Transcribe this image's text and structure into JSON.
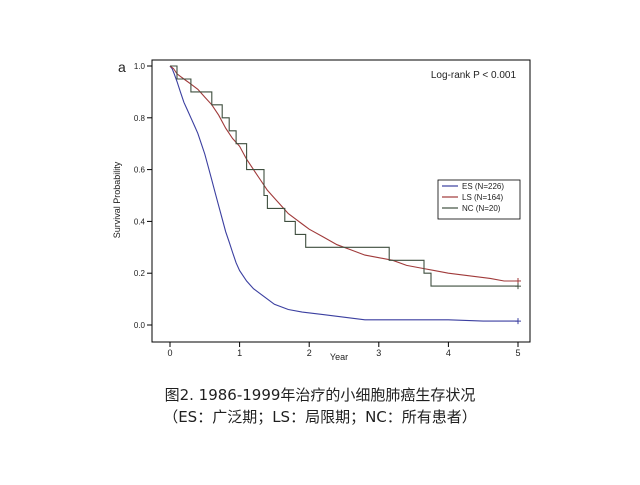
{
  "chart_data": {
    "type": "line",
    "panel_label": "a",
    "title": "",
    "xlabel": "Year",
    "ylabel": "Survival Probability",
    "xlim": [
      0,
      5
    ],
    "ylim": [
      0,
      1
    ],
    "xticks": [
      "0",
      "1",
      "2",
      "3",
      "4",
      "5"
    ],
    "yticks": [
      "0.0",
      "0.2",
      "0.4",
      "0.6",
      "0.8",
      "1.0"
    ],
    "grid": false,
    "legend_position": "right",
    "annotation": "Log-rank P < 0.001",
    "series": [
      {
        "name": "ES (N=226)",
        "color": "#3b3fa0",
        "points": [
          [
            0,
            1.0
          ],
          [
            0.03,
            0.99
          ],
          [
            0.06,
            0.97
          ],
          [
            0.1,
            0.94
          ],
          [
            0.15,
            0.9
          ],
          [
            0.2,
            0.86
          ],
          [
            0.25,
            0.83
          ],
          [
            0.3,
            0.8
          ],
          [
            0.35,
            0.77
          ],
          [
            0.4,
            0.74
          ],
          [
            0.45,
            0.7
          ],
          [
            0.5,
            0.66
          ],
          [
            0.55,
            0.61
          ],
          [
            0.6,
            0.56
          ],
          [
            0.65,
            0.51
          ],
          [
            0.7,
            0.46
          ],
          [
            0.75,
            0.41
          ],
          [
            0.8,
            0.36
          ],
          [
            0.85,
            0.32
          ],
          [
            0.9,
            0.28
          ],
          [
            0.95,
            0.24
          ],
          [
            1.0,
            0.21
          ],
          [
            1.1,
            0.17
          ],
          [
            1.2,
            0.14
          ],
          [
            1.3,
            0.12
          ],
          [
            1.4,
            0.1
          ],
          [
            1.5,
            0.08
          ],
          [
            1.7,
            0.06
          ],
          [
            1.9,
            0.05
          ],
          [
            2.2,
            0.04
          ],
          [
            2.5,
            0.03
          ],
          [
            2.8,
            0.02
          ],
          [
            3.2,
            0.02
          ],
          [
            4.0,
            0.02
          ],
          [
            4.5,
            0.015
          ],
          [
            5.0,
            0.015
          ]
        ]
      },
      {
        "name": "LS (N=164)",
        "color": "#a03a3a",
        "points": [
          [
            0,
            1.0
          ],
          [
            0.05,
            0.99
          ],
          [
            0.1,
            0.97
          ],
          [
            0.15,
            0.96
          ],
          [
            0.2,
            0.95
          ],
          [
            0.3,
            0.93
          ],
          [
            0.4,
            0.91
          ],
          [
            0.5,
            0.88
          ],
          [
            0.6,
            0.85
          ],
          [
            0.7,
            0.81
          ],
          [
            0.8,
            0.76
          ],
          [
            0.9,
            0.72
          ],
          [
            1.0,
            0.69
          ],
          [
            1.1,
            0.64
          ],
          [
            1.2,
            0.6
          ],
          [
            1.3,
            0.56
          ],
          [
            1.4,
            0.52
          ],
          [
            1.5,
            0.49
          ],
          [
            1.6,
            0.46
          ],
          [
            1.7,
            0.43
          ],
          [
            1.8,
            0.41
          ],
          [
            1.9,
            0.39
          ],
          [
            2.0,
            0.37
          ],
          [
            2.2,
            0.34
          ],
          [
            2.4,
            0.31
          ],
          [
            2.6,
            0.29
          ],
          [
            2.8,
            0.27
          ],
          [
            3.0,
            0.26
          ],
          [
            3.2,
            0.25
          ],
          [
            3.4,
            0.23
          ],
          [
            3.6,
            0.22
          ],
          [
            3.8,
            0.21
          ],
          [
            4.0,
            0.2
          ],
          [
            4.3,
            0.19
          ],
          [
            4.6,
            0.18
          ],
          [
            4.8,
            0.17
          ],
          [
            5.0,
            0.17
          ]
        ]
      },
      {
        "name": "NC (N=20)",
        "color": "#3f4f3f",
        "points": [
          [
            0,
            1.0
          ],
          [
            0.1,
            1.0
          ],
          [
            0.1,
            0.95
          ],
          [
            0.3,
            0.95
          ],
          [
            0.3,
            0.9
          ],
          [
            0.6,
            0.9
          ],
          [
            0.6,
            0.85
          ],
          [
            0.75,
            0.85
          ],
          [
            0.75,
            0.8
          ],
          [
            0.85,
            0.8
          ],
          [
            0.85,
            0.75
          ],
          [
            0.95,
            0.75
          ],
          [
            0.95,
            0.7
          ],
          [
            1.1,
            0.7
          ],
          [
            1.1,
            0.6
          ],
          [
            1.35,
            0.6
          ],
          [
            1.35,
            0.5
          ],
          [
            1.4,
            0.5
          ],
          [
            1.4,
            0.45
          ],
          [
            1.65,
            0.45
          ],
          [
            1.65,
            0.4
          ],
          [
            1.8,
            0.4
          ],
          [
            1.8,
            0.35
          ],
          [
            1.95,
            0.35
          ],
          [
            1.95,
            0.3
          ],
          [
            3.15,
            0.3
          ],
          [
            3.15,
            0.25
          ],
          [
            3.65,
            0.25
          ],
          [
            3.65,
            0.2
          ],
          [
            3.75,
            0.2
          ],
          [
            3.75,
            0.15
          ],
          [
            5.0,
            0.15
          ]
        ]
      }
    ]
  },
  "caption": {
    "line1": "图2. 1986-1999年治疗的小细胞肺癌生存状况",
    "line2": "（ES：广泛期；LS：局限期；NC：所有患者）"
  }
}
